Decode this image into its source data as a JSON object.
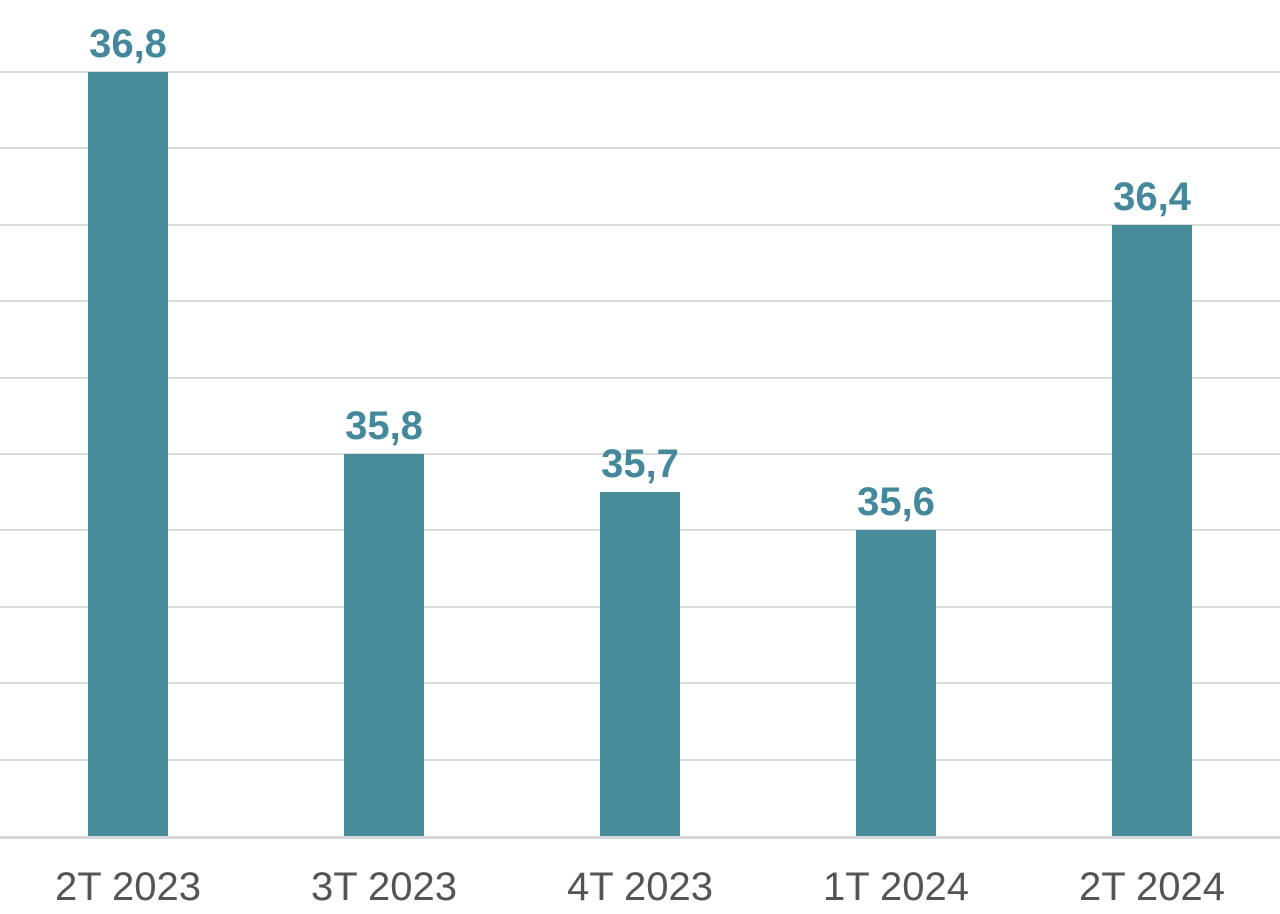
{
  "chart_data": {
    "type": "bar",
    "title": "",
    "xlabel": "",
    "ylabel": "",
    "categories": [
      "2T 2023",
      "3T 2023",
      "4T 2023",
      "1T 2024",
      "2T 2024"
    ],
    "values": [
      36.8,
      35.8,
      35.7,
      35.6,
      36.4
    ],
    "value_labels": [
      "36,8",
      "35,8",
      "35,7",
      "35,6",
      "36,4"
    ],
    "ylim": [
      34.8,
      37.0
    ],
    "gridline_step": 0.2,
    "gridline_values": [
      35.0,
      35.2,
      35.4,
      35.6,
      35.8,
      36.0,
      36.2,
      36.4,
      36.6,
      36.8
    ],
    "grid": "horizontal-only",
    "legend": "none",
    "y_axis_tick_labels": "none",
    "colors": {
      "bar": "#488c9a",
      "value_label": "#43899b",
      "category_label": "#545454",
      "gridline": "#dbdbdb",
      "baseline": "#d6d6d6",
      "background": "#ffffff"
    }
  }
}
